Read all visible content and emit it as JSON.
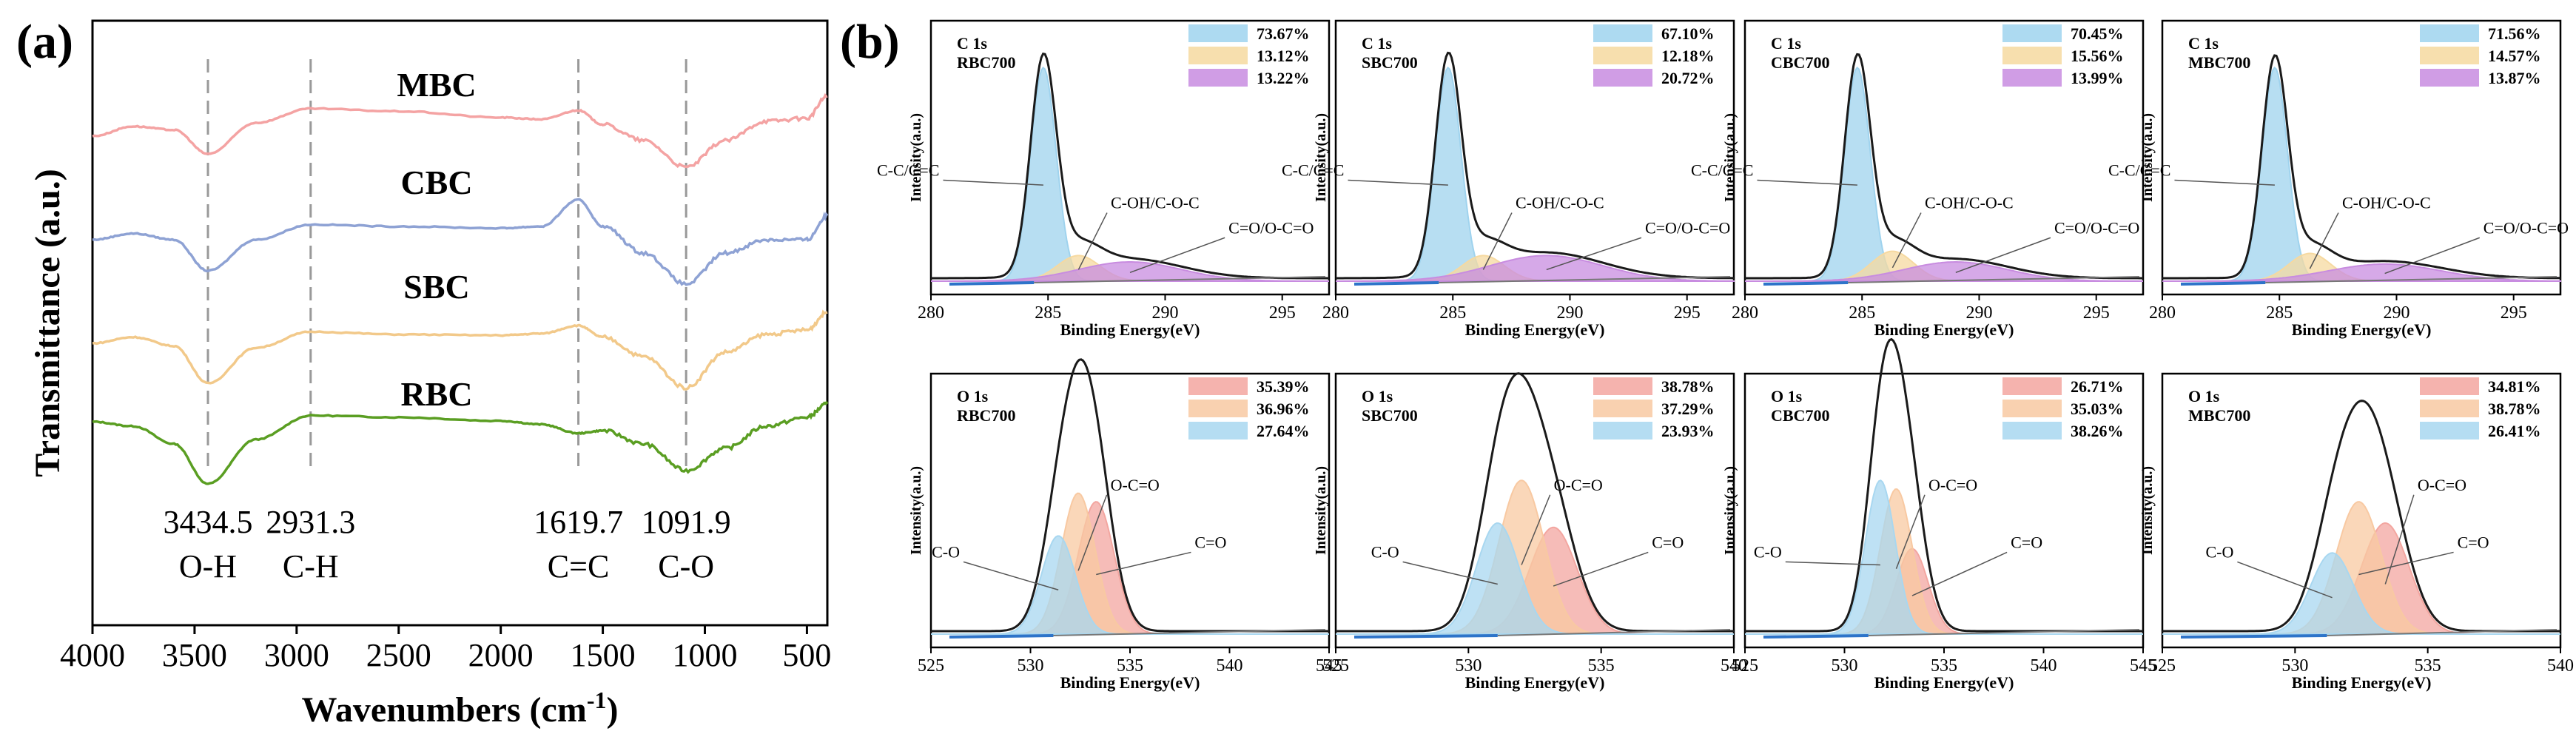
{
  "panel_a": {
    "label": "(a)",
    "title": "",
    "xlabel": "Wavenumbers (cm",
    "xlabel_sup": "-1",
    "xlabel_close": ")",
    "ylabel": "Transmittance (a.u.)",
    "peaks": [
      {
        "value": "3434.5",
        "group": "O-H",
        "x": 3434.5
      },
      {
        "value": "2931.3",
        "group": "C-H",
        "x": 2931.3
      },
      {
        "value": "1619.7",
        "group": "C=C",
        "x": 1619.7
      },
      {
        "value": "1091.9",
        "group": "C-O",
        "x": 1091.9
      }
    ]
  },
  "panel_b": {
    "label": "(b)",
    "xlabel": "Binding Energy(eV)",
    "ylabel": "Intensity(a.u.)"
  },
  "colors": {
    "MBC": "#f4a3a3",
    "CBC": "#8ea2d4",
    "SBC": "#f2c98a",
    "RBC": "#5a9e22",
    "c_main": "#9fd3ee",
    "c_mid": "#f6d9a0",
    "c_high": "#c88ce0",
    "o_a": "#f3a6a0",
    "o_b": "#f8c9a2",
    "o_c": "#a8d7f0",
    "envelope": "#1a1a1a",
    "background": "#2e74c9",
    "guide": "#999999"
  },
  "chart_data": [
    {
      "type": "line",
      "title": "",
      "xlabel": "Wavenumbers (cm-1)",
      "ylabel": "Transmittance (a.u.)",
      "xlim": [
        4000,
        400
      ],
      "x_ticks": [
        4000,
        3500,
        3000,
        2500,
        2000,
        1500,
        1000,
        500
      ],
      "grid": false,
      "series": [
        {
          "name": "MBC",
          "offset": 3,
          "values": [
            [
              4000,
              0.55
            ],
            [
              3800,
              0.66
            ],
            [
              3600,
              0.62
            ],
            [
              3434.5,
              0.35
            ],
            [
              3200,
              0.7
            ],
            [
              2931.3,
              0.86
            ],
            [
              2500,
              0.83
            ],
            [
              2000,
              0.76
            ],
            [
              1800,
              0.74
            ],
            [
              1619.7,
              0.84
            ],
            [
              1500,
              0.68
            ],
            [
              1300,
              0.5
            ],
            [
              1091.9,
              0.2
            ],
            [
              900,
              0.5
            ],
            [
              700,
              0.72
            ],
            [
              500,
              0.75
            ],
            [
              400,
              1.0
            ]
          ]
        },
        {
          "name": "CBC",
          "offset": 2,
          "values": [
            [
              4000,
              0.55
            ],
            [
              3800,
              0.62
            ],
            [
              3600,
              0.55
            ],
            [
              3434.5,
              0.2
            ],
            [
              3200,
              0.55
            ],
            [
              2931.3,
              0.72
            ],
            [
              2500,
              0.7
            ],
            [
              2000,
              0.68
            ],
            [
              1800,
              0.7
            ],
            [
              1619.7,
              1.0
            ],
            [
              1500,
              0.7
            ],
            [
              1300,
              0.4
            ],
            [
              1091.9,
              0.05
            ],
            [
              900,
              0.4
            ],
            [
              700,
              0.55
            ],
            [
              500,
              0.55
            ],
            [
              400,
              0.82
            ]
          ]
        },
        {
          "name": "SBC",
          "offset": 1,
          "values": [
            [
              4000,
              0.55
            ],
            [
              3800,
              0.62
            ],
            [
              3600,
              0.52
            ],
            [
              3434.5,
              0.1
            ],
            [
              3200,
              0.5
            ],
            [
              2931.3,
              0.68
            ],
            [
              2500,
              0.65
            ],
            [
              2000,
              0.64
            ],
            [
              1800,
              0.66
            ],
            [
              1619.7,
              0.75
            ],
            [
              1500,
              0.62
            ],
            [
              1300,
              0.4
            ],
            [
              1091.9,
              0.05
            ],
            [
              900,
              0.45
            ],
            [
              700,
              0.65
            ],
            [
              500,
              0.7
            ],
            [
              400,
              0.9
            ]
          ]
        },
        {
          "name": "RBC",
          "offset": 0,
          "values": [
            [
              4000,
              0.75
            ],
            [
              3800,
              0.7
            ],
            [
              3600,
              0.5
            ],
            [
              3434.5,
              0.05
            ],
            [
              3200,
              0.55
            ],
            [
              2931.3,
              0.82
            ],
            [
              2500,
              0.8
            ],
            [
              2000,
              0.76
            ],
            [
              1800,
              0.72
            ],
            [
              1619.7,
              0.62
            ],
            [
              1500,
              0.65
            ],
            [
              1300,
              0.5
            ],
            [
              1091.9,
              0.2
            ],
            [
              900,
              0.45
            ],
            [
              700,
              0.7
            ],
            [
              500,
              0.8
            ],
            [
              400,
              0.95
            ]
          ]
        }
      ]
    },
    {
      "type": "area",
      "title": "C 1s",
      "sample": "RBC700",
      "xlabel": "Binding Energy(eV)",
      "ylabel": "Intensity(a.u.)",
      "xlim": [
        280,
        297
      ],
      "x_ticks": [
        280,
        285,
        290,
        295
      ],
      "legend": [
        "73.67%",
        "13.12%",
        "13.22%"
      ],
      "components": [
        {
          "name": "C-C/C=C",
          "center": 284.8,
          "height": 1.0,
          "sigma": 0.55,
          "color": "c_main"
        },
        {
          "name": "C-OH/C-O-C",
          "center": 286.3,
          "height": 0.12,
          "sigma": 0.9,
          "color": "c_mid"
        },
        {
          "name": "C=O/O-C=O",
          "center": 288.5,
          "height": 0.09,
          "sigma": 2.2,
          "color": "c_high"
        }
      ]
    },
    {
      "type": "area",
      "title": "C 1s",
      "sample": "SBC700",
      "xlabel": "Binding Energy(eV)",
      "ylabel": "Intensity(a.u.)",
      "xlim": [
        280,
        297
      ],
      "x_ticks": [
        280,
        285,
        290,
        295
      ],
      "legend": [
        "67.10%",
        "12.18%",
        "20.72%"
      ],
      "components": [
        {
          "name": "C-C/C=C",
          "center": 284.8,
          "height": 1.0,
          "sigma": 0.55,
          "color": "c_main"
        },
        {
          "name": "C-OH/C-O-C",
          "center": 286.3,
          "height": 0.12,
          "sigma": 0.9,
          "color": "c_mid"
        },
        {
          "name": "C=O/O-C=O",
          "center": 289.0,
          "height": 0.12,
          "sigma": 2.4,
          "color": "c_high"
        }
      ]
    },
    {
      "type": "area",
      "title": "C 1s",
      "sample": "CBC700",
      "xlabel": "Binding Energy(eV)",
      "ylabel": "Intensity(a.u.)",
      "xlim": [
        280,
        297
      ],
      "x_ticks": [
        280,
        285,
        290,
        295
      ],
      "legend": [
        "70.45%",
        "15.56%",
        "13.99%"
      ],
      "components": [
        {
          "name": "C-C/C=C",
          "center": 284.8,
          "height": 1.0,
          "sigma": 0.55,
          "color": "c_main"
        },
        {
          "name": "C-OH/C-O-C",
          "center": 286.3,
          "height": 0.14,
          "sigma": 0.9,
          "color": "c_mid"
        },
        {
          "name": "C=O/O-C=O",
          "center": 289.0,
          "height": 0.09,
          "sigma": 2.2,
          "color": "c_high"
        }
      ]
    },
    {
      "type": "area",
      "title": "C 1s",
      "sample": "MBC700",
      "xlabel": "Binding Energy(eV)",
      "ylabel": "Intensity(a.u.)",
      "xlim": [
        280,
        297
      ],
      "x_ticks": [
        280,
        285,
        290,
        295
      ],
      "legend": [
        "71.56%",
        "14.57%",
        "13.87%"
      ],
      "components": [
        {
          "name": "C-C/C=C",
          "center": 284.8,
          "height": 1.0,
          "sigma": 0.55,
          "color": "c_main"
        },
        {
          "name": "C-OH/C-O-C",
          "center": 286.3,
          "height": 0.13,
          "sigma": 0.9,
          "color": "c_mid"
        },
        {
          "name": "C=O/O-C=O",
          "center": 289.5,
          "height": 0.08,
          "sigma": 2.4,
          "color": "c_high"
        }
      ]
    },
    {
      "type": "area",
      "title": "O 1s",
      "sample": "RBC700",
      "xlabel": "Binding Energy(eV)",
      "ylabel": "Intensity(a.u.)",
      "xlim": [
        525,
        545
      ],
      "x_ticks": [
        525,
        530,
        535,
        540,
        545
      ],
      "legend": [
        "35.39%",
        "36.96%",
        "27.64%"
      ],
      "components": [
        {
          "name": "C=O",
          "center": 533.3,
          "height": 0.62,
          "sigma": 0.9,
          "color": "o_a"
        },
        {
          "name": "O-C=O",
          "center": 532.4,
          "height": 0.66,
          "sigma": 0.85,
          "color": "o_b"
        },
        {
          "name": "C-O",
          "center": 531.4,
          "height": 0.46,
          "sigma": 0.85,
          "color": "o_c"
        }
      ]
    },
    {
      "type": "area",
      "title": "O 1s",
      "sample": "SBC700",
      "xlabel": "Binding Energy(eV)",
      "ylabel": "Intensity(a.u.)",
      "xlim": [
        525,
        540
      ],
      "x_ticks": [
        525,
        530,
        535,
        540
      ],
      "legend": [
        "38.78%",
        "37.29%",
        "23.93%"
      ],
      "components": [
        {
          "name": "C=O",
          "center": 533.2,
          "height": 0.5,
          "sigma": 0.9,
          "color": "o_a"
        },
        {
          "name": "O-C=O",
          "center": 532.0,
          "height": 0.72,
          "sigma": 0.85,
          "color": "o_b"
        },
        {
          "name": "C-O",
          "center": 531.1,
          "height": 0.52,
          "sigma": 0.8,
          "color": "o_c"
        }
      ]
    },
    {
      "type": "area",
      "title": "O 1s",
      "sample": "CBC700",
      "xlabel": "Binding Energy(eV)",
      "ylabel": "Intensity(a.u.)",
      "xlim": [
        525,
        545
      ],
      "x_ticks": [
        525,
        530,
        535,
        540,
        545
      ],
      "legend": [
        "26.71%",
        "35.03%",
        "38.26%"
      ],
      "components": [
        {
          "name": "C=O",
          "center": 533.4,
          "height": 0.4,
          "sigma": 0.8,
          "color": "o_a"
        },
        {
          "name": "O-C=O",
          "center": 532.6,
          "height": 0.68,
          "sigma": 0.8,
          "color": "o_b"
        },
        {
          "name": "C-O",
          "center": 531.8,
          "height": 0.72,
          "sigma": 0.75,
          "color": "o_c"
        }
      ]
    },
    {
      "type": "area",
      "title": "O 1s",
      "sample": "MBC700",
      "xlabel": "Binding Energy(eV)",
      "ylabel": "Intensity(a.u.)",
      "xlim": [
        525,
        540
      ],
      "x_ticks": [
        525,
        530,
        535,
        540
      ],
      "legend": [
        "34.81%",
        "38.78%",
        "26.41%"
      ],
      "components": [
        {
          "name": "O-C=O",
          "center": 533.4,
          "height": 0.52,
          "sigma": 0.9,
          "color": "o_a"
        },
        {
          "name": "C=O",
          "center": 532.4,
          "height": 0.62,
          "sigma": 0.85,
          "color": "o_b"
        },
        {
          "name": "C-O",
          "center": 531.4,
          "height": 0.38,
          "sigma": 0.8,
          "color": "o_c"
        }
      ]
    }
  ]
}
